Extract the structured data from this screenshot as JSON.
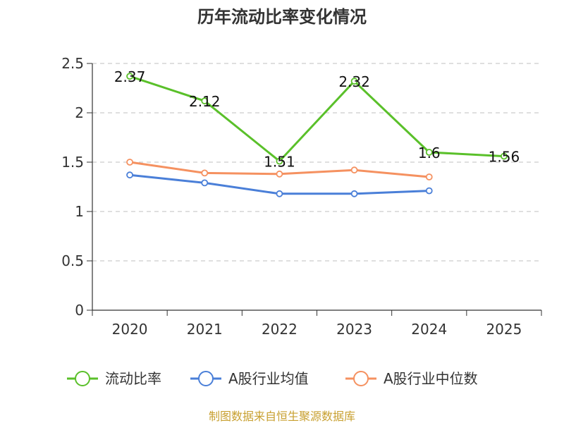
{
  "chart_data": {
    "type": "line",
    "title": "历年流动比率变化情况",
    "categories": [
      "2020",
      "2021",
      "2022",
      "2023",
      "2024",
      "2025"
    ],
    "ylim": [
      0,
      2.5
    ],
    "yticks": [
      "0",
      "0.5",
      "1",
      "1.5",
      "2",
      "2.5"
    ],
    "ytick_values": [
      0,
      0.5,
      1,
      1.5,
      2,
      2.5
    ],
    "grid": true,
    "legend_position": "bottom",
    "series": [
      {
        "name": "流动比率",
        "color": "#5ac02a",
        "values": [
          2.37,
          2.12,
          1.51,
          2.32,
          1.6,
          1.56
        ],
        "labels": [
          "2.37",
          "2.12",
          "1.51",
          "2.32",
          "1.6",
          "1.56"
        ]
      },
      {
        "name": "A股行业均值",
        "color": "#4a7fd8",
        "values": [
          1.37,
          1.29,
          1.18,
          1.18,
          1.21,
          null
        ]
      },
      {
        "name": "A股行业中位数",
        "color": "#f59160",
        "values": [
          1.5,
          1.39,
          1.38,
          1.42,
          1.35,
          null
        ]
      }
    ]
  },
  "footer": "制图数据来自恒生聚源数据库"
}
